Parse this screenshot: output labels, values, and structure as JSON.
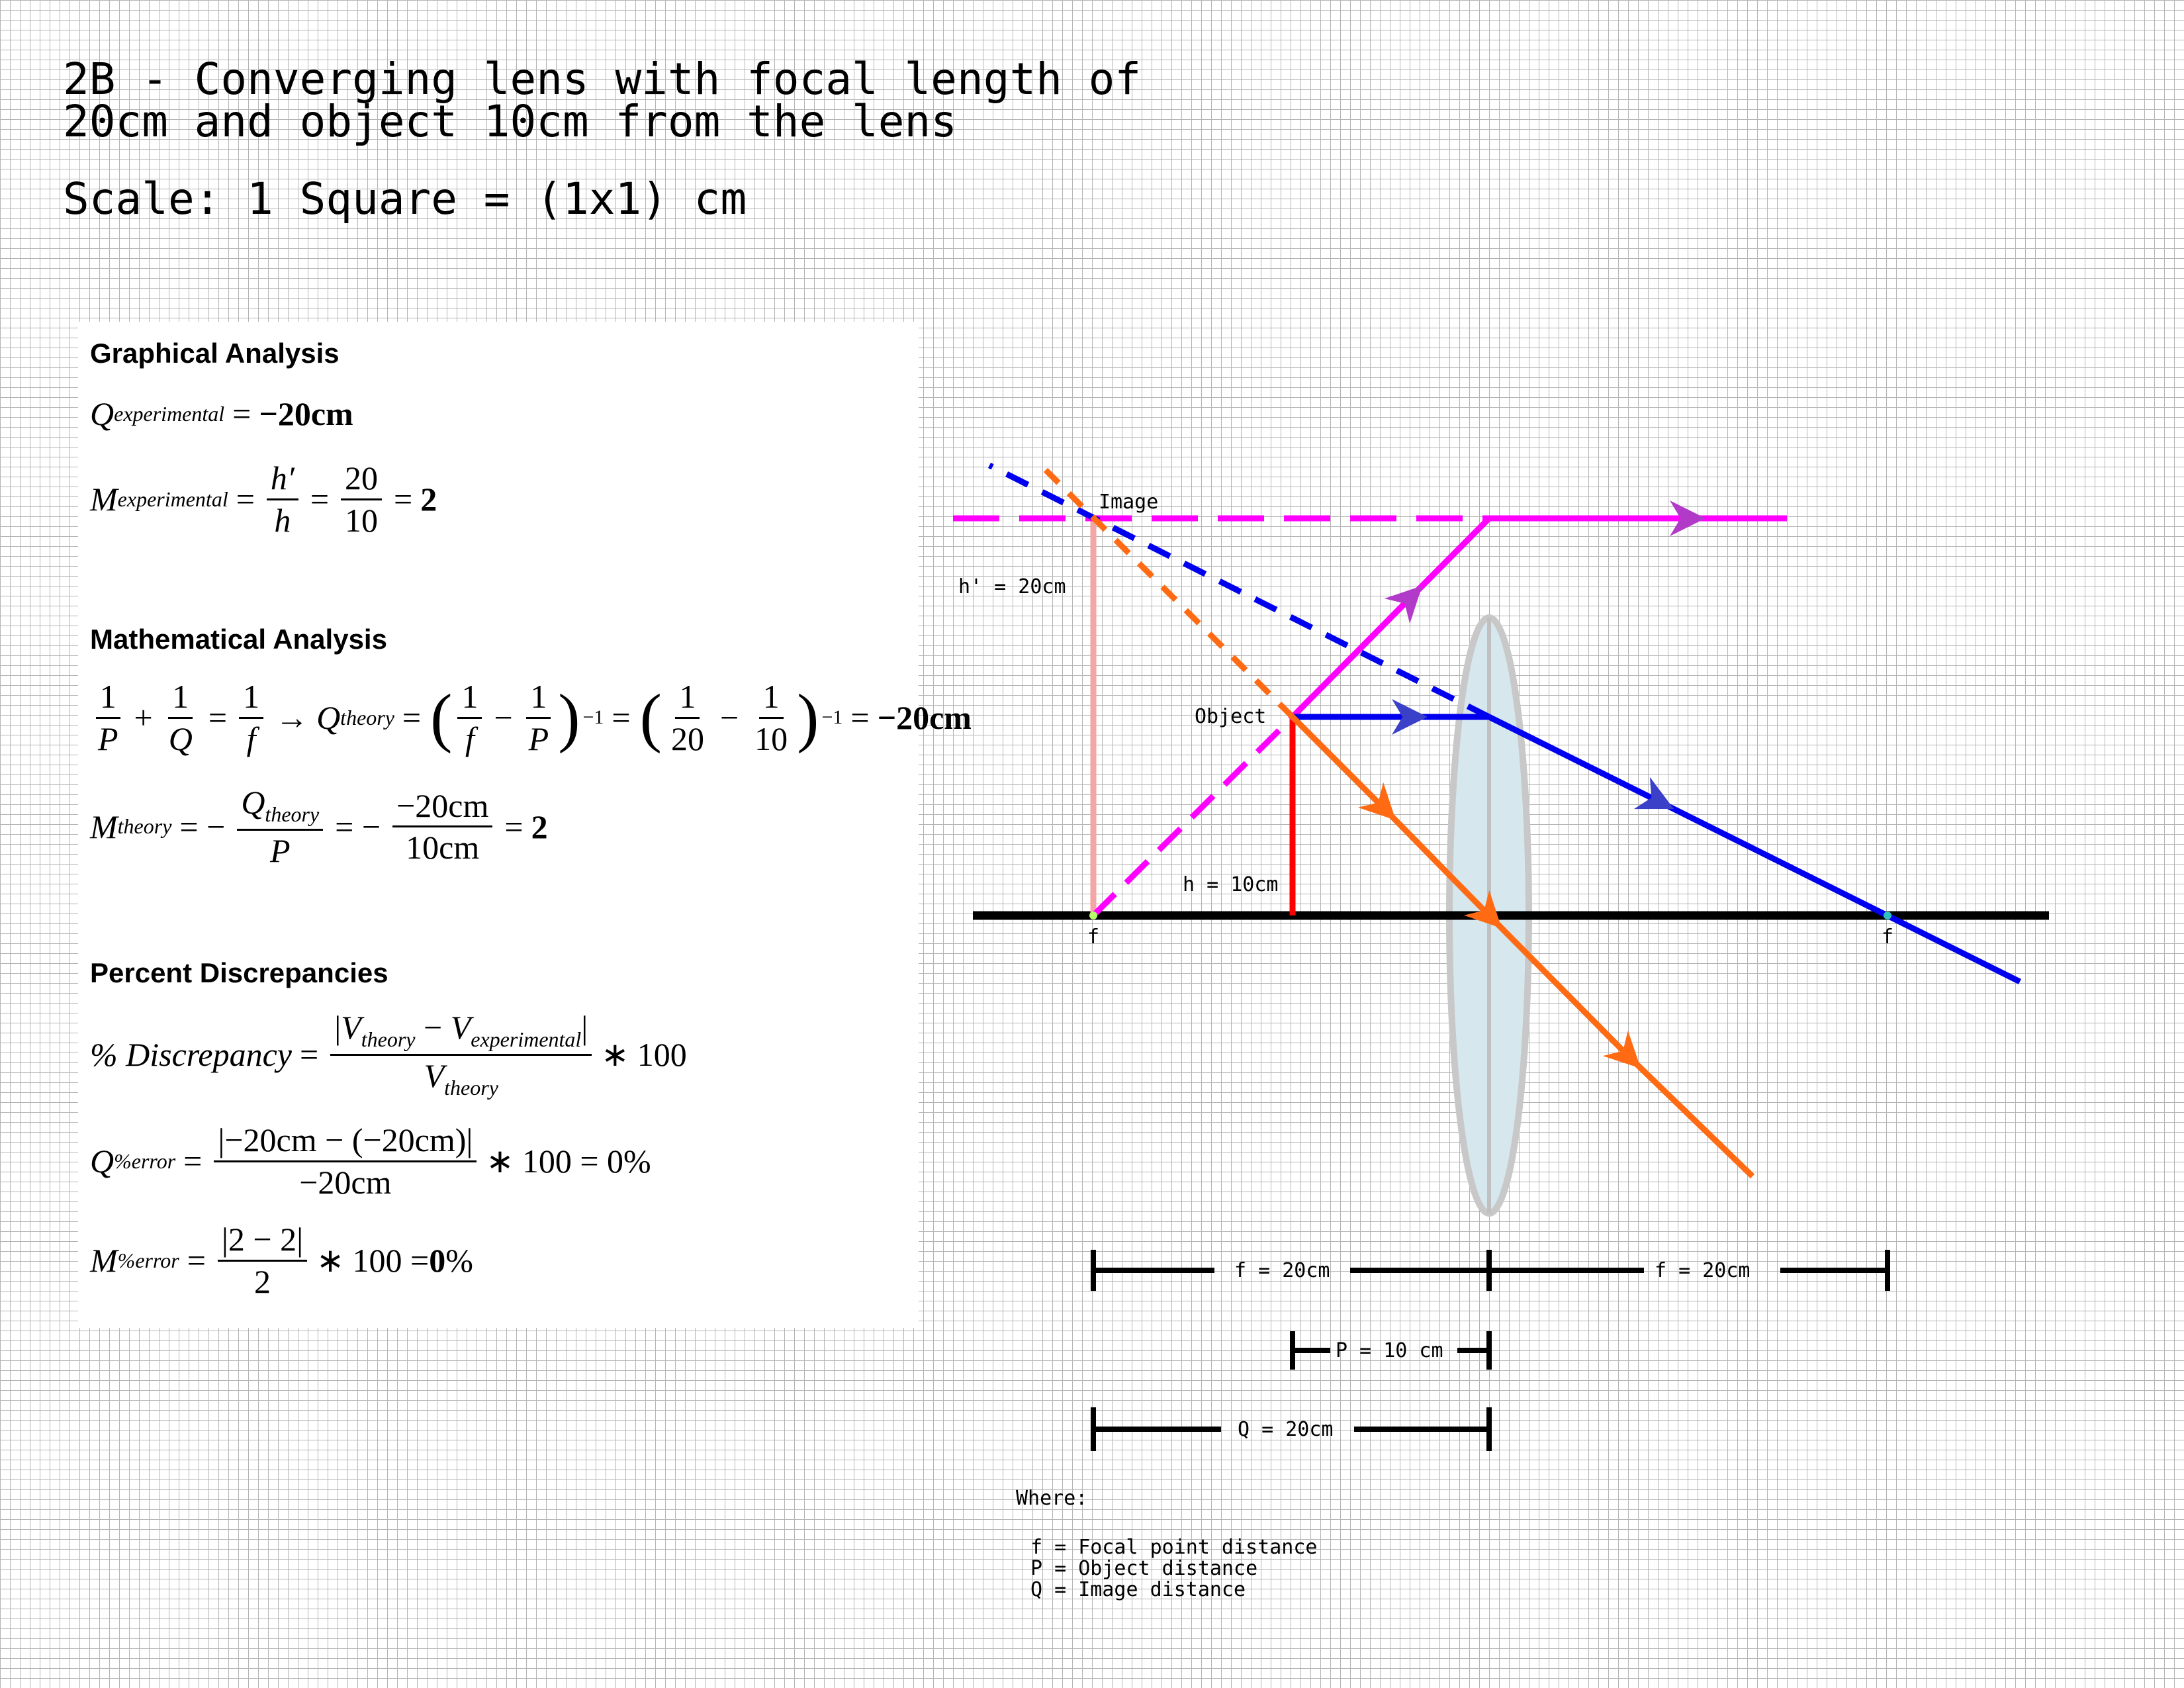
{
  "title": {
    "line1": "2B - Converging lens with focal length of",
    "line2": "20cm and object 10cm from the lens"
  },
  "scale": "Scale: 1 Square = (1x1) cm",
  "analysis": {
    "graphical": {
      "heading": "Graphical Analysis",
      "q_symbol": "Q",
      "q_sub": "experimental",
      "q_value": "−20cm",
      "m_symbol": "M",
      "m_sub": "experimental",
      "h_prime": "h′",
      "h": "h",
      "num": "20",
      "den": "10",
      "m_value": "2"
    },
    "mathematical": {
      "heading": "Mathematical Analysis",
      "one": "1",
      "P": "P",
      "Q": "Q",
      "f": "f",
      "q_theory_sub": "theory",
      "neg_one": "−1",
      "twenty": "20",
      "ten": "10",
      "q_value": "−20cm",
      "m_symbol": "M",
      "m_theory_sub": "theory",
      "m_num": "−20cm",
      "m_den": "10cm",
      "m_value": "2"
    },
    "discrepancy": {
      "heading": "Percent Discrepancies",
      "label": "% Discrepancy",
      "v_theory": "V",
      "v_theory_sub": "theory",
      "v_exp_sub": "experimental",
      "times_100": "∗ 100",
      "q_err_symbol": "Q",
      "q_err_sub": "%error",
      "q_err_num": "|−20cm − (−20cm)|",
      "q_err_den": "−20cm",
      "q_err_result": "∗ 100 = 0%",
      "m_err_symbol": "M",
      "m_err_sub": "%error",
      "m_err_num": "|2 −  2|",
      "m_err_den": "2",
      "m_err_result_prefix": "∗ 100 = ",
      "m_err_result_value": "0",
      "m_err_result_suffix": "%"
    }
  },
  "diagram": {
    "labels": {
      "image": "Image",
      "h_prime": "h' = 20cm",
      "object": "Object",
      "h": "h = 10cm",
      "focal_left": "f",
      "focal_right": "f"
    },
    "dimensions": {
      "f_left": "f = 20cm",
      "f_right": "f = 20cm",
      "p": "P = 10 cm",
      "q": "Q = 20cm"
    },
    "colors": {
      "ray_blue": "#0000ee",
      "ray_magenta": "#ff00ff",
      "ray_orange": "#ff6a13",
      "object": "#ff0000",
      "image": "#f4a6a6",
      "lens_fill": "#d6e7ee",
      "lens_edge": "#c8c8c8"
    }
  },
  "legend": {
    "title": "Where:",
    "items": [
      "f = Focal point distance",
      "P = Object distance",
      "Q = Image distance"
    ]
  }
}
